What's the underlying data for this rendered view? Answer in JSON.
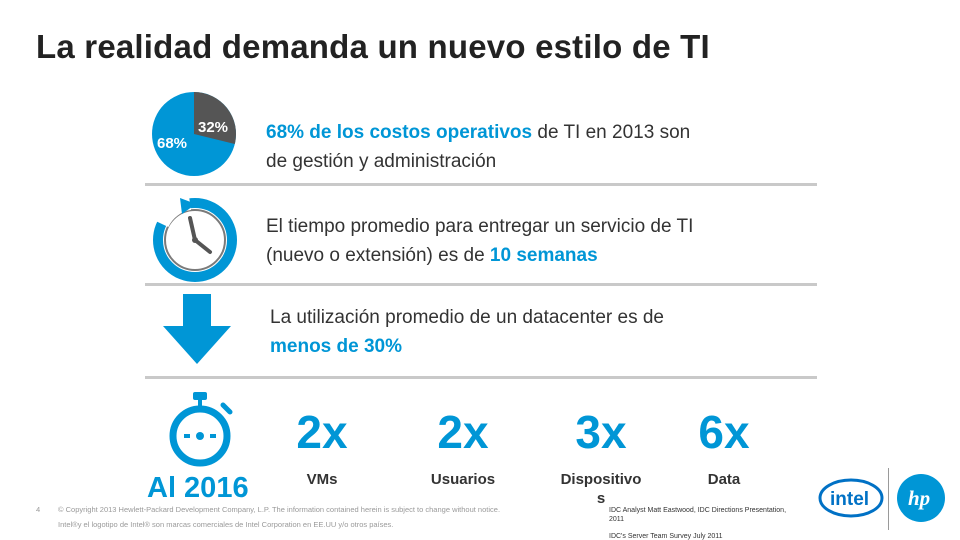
{
  "title": "La realidad demanda un nuevo estilo de TI",
  "row1": {
    "pie_small": "32%",
    "pie_large": "68%",
    "text_highlight": "68% de los costos operativos",
    "text_line1_rest": " de TI en 2013 son",
    "text_line2": "de gestión y administración"
  },
  "row2": {
    "text_line1": "El tiempo promedio para entregar un servicio de TI",
    "text_line2_start": "(nuevo o extensión) es de ",
    "text_line2_highlight": "10 semanas"
  },
  "row3": {
    "text_line1": "La utilización promedio de un datacenter es de",
    "text_line2_highlight": "menos de 30%"
  },
  "stats": {
    "year_label": "Al 2016",
    "items": [
      {
        "value": "2x",
        "label": "VMs"
      },
      {
        "value": "2x",
        "label": "Usuarios"
      },
      {
        "value": "3x",
        "label_line1": "Dispositivo",
        "label_line2": "s"
      },
      {
        "value": "6x",
        "label": "Data"
      }
    ]
  },
  "footer": {
    "page_number": "4",
    "copyright": "© Copyright  2013 Hewlett-Packard Development Company, L.P. The information contained herein is subject to change without notice.",
    "intel_note": "Intel®y el logotipo de Intel® son marcas comerciales de Intel Corporation en EE.UU y/o otros países.",
    "source_line1": "IDC Analyst Matt Eastwood,  IDC Directions Presentation,",
    "source_line2": "2011",
    "source_line3": "IDC's Server Team  Survey   July 2011"
  },
  "logos": {
    "intel": "intel",
    "hp": "hp"
  },
  "colors": {
    "accent": "#0096d6",
    "pie_dark": "#555555",
    "divider": "#c9c9c9"
  }
}
